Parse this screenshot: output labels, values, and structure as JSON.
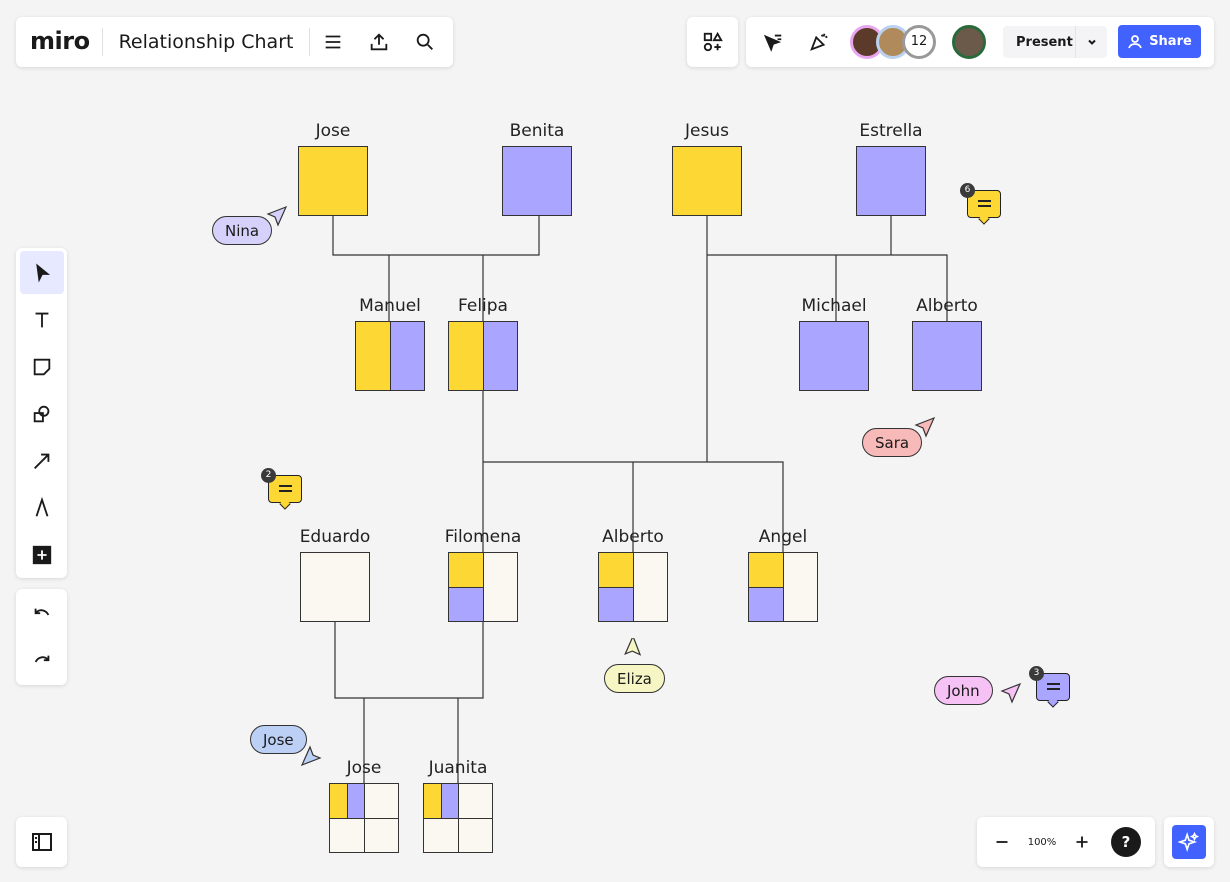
{
  "header": {
    "logo": "miro",
    "board_title": "Relationship Chart",
    "collaborator_count": "12",
    "present_label": "Present",
    "share_label": "Share"
  },
  "zoom": {
    "level": "100%",
    "help": "?"
  },
  "colors": {
    "yellow": "#fdd835",
    "purple": "#aaa5ff",
    "cream": "#faf8f0",
    "accent": "#4262ff"
  },
  "people": [
    {
      "name": "Jose",
      "pattern": "yellow"
    },
    {
      "name": "Benita",
      "pattern": "purple"
    },
    {
      "name": "Jesus",
      "pattern": "yellow"
    },
    {
      "name": "Estrella",
      "pattern": "purple"
    },
    {
      "name": "Manuel",
      "pattern": "half"
    },
    {
      "name": "Felipa",
      "pattern": "half"
    },
    {
      "name": "Michael",
      "pattern": "purple"
    },
    {
      "name": "Alberto",
      "pattern": "purple"
    },
    {
      "name": "Eduardo",
      "pattern": "cream"
    },
    {
      "name": "Filomena",
      "pattern": "quad"
    },
    {
      "name": "Alberto",
      "pattern": "quad"
    },
    {
      "name": "Angel",
      "pattern": "quad"
    },
    {
      "name": "Jose",
      "pattern": "grand"
    },
    {
      "name": "Juanita",
      "pattern": "grand"
    }
  ],
  "cursors": [
    {
      "name": "Nina",
      "color": "#d6d1fb"
    },
    {
      "name": "Sara",
      "color": "#f8b9b9"
    },
    {
      "name": "Eliza",
      "color": "#f6f6c4"
    },
    {
      "name": "John",
      "color": "#f6c2f6"
    },
    {
      "name": "Jose",
      "color": "#bcd0f6"
    }
  ],
  "comments": [
    {
      "count": "6",
      "color": "#fdd835"
    },
    {
      "count": "2",
      "color": "#fdd835"
    },
    {
      "count": "3",
      "color": "#aaa5ff"
    }
  ]
}
